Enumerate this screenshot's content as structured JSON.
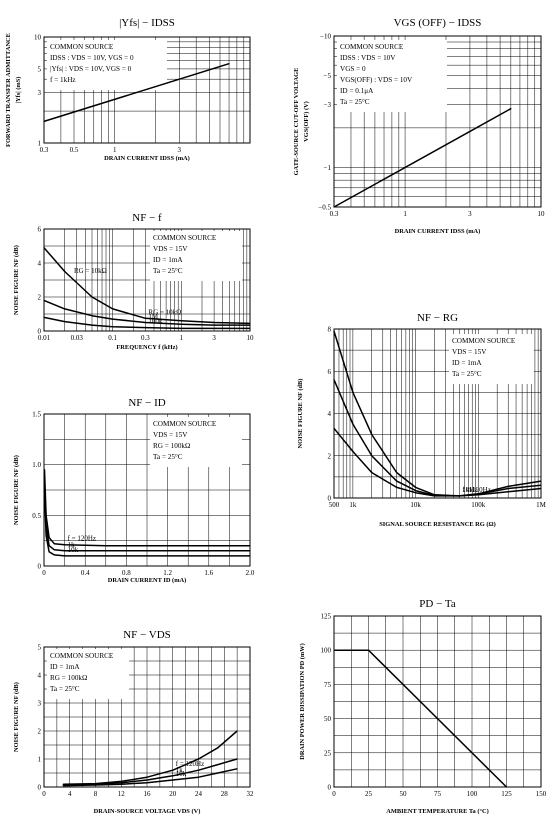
{
  "chart_data": [
    {
      "id": "yfs",
      "type": "line",
      "title": "|Yfs| − IDSS",
      "xscale": "log",
      "yscale": "log",
      "xlim": [
        0.3,
        10
      ],
      "ylim": [
        1,
        10
      ],
      "xticks": [
        0.3,
        0.5,
        1,
        3,
        5,
        10
      ],
      "xticklabels": [
        "0.3",
        "0.5",
        "1",
        "3",
        "",
        ""
      ],
      "yticks": [
        1,
        3,
        5,
        10
      ],
      "yticklabels": [
        "1",
        "3",
        "5",
        "10"
      ],
      "xlabel": "DRAIN CURRENT  IDSS  (mA)",
      "ylabel": [
        "FORWARD TRANSFER ADMITTANCE",
        "|Yfs|  (mS)"
      ],
      "conditions": [
        "COMMON SOURCE",
        "IDSS : VDS = 10V, VGS = 0",
        "|Yfs| : VDS = 10V, VGS = 0",
        "f = 1kHz"
      ],
      "series": [
        {
          "x": [
            0.3,
            7
          ],
          "y": [
            1.6,
            5.6
          ]
        }
      ]
    },
    {
      "id": "vgsoff",
      "type": "line",
      "title": "VGS (OFF) − IDSS",
      "xscale": "log",
      "yscale": "log",
      "xlim": [
        0.3,
        10
      ],
      "ylim": [
        -0.5,
        -10
      ],
      "xticks": [
        0.3,
        1,
        3,
        10
      ],
      "xticklabels": [
        "0.3",
        "1",
        "3",
        "10"
      ],
      "yticks": [
        -0.5,
        -1,
        -3,
        -5,
        -10
      ],
      "yticklabels": [
        "−0.5",
        "−1",
        "−3",
        "−5",
        "−10"
      ],
      "xlabel": "DRAIN CURRENT  IDSS  (mA)",
      "ylabel": [
        "GATE-SOURCE CUT-OFF VOLTAGE",
        "VGS(OFF)  (V)"
      ],
      "conditions": [
        "COMMON SOURCE",
        "IDSS : VDS = 10V",
        "VGS = 0",
        "VGS(OFF) : VDS = 10V",
        "ID = 0.1μA",
        "Ta = 25°C"
      ],
      "series": [
        {
          "x": [
            0.3,
            6
          ],
          "y": [
            -0.5,
            -2.8
          ]
        }
      ]
    },
    {
      "id": "nff",
      "type": "line",
      "title": "NF − f",
      "xscale": "log",
      "xlim": [
        0.01,
        10
      ],
      "ylim": [
        0,
        6
      ],
      "xticks": [
        0.01,
        0.03,
        0.1,
        0.3,
        1,
        3,
        10
      ],
      "xticklabels": [
        "0.01",
        "0.03",
        "0.1",
        "0.3",
        "1",
        "3",
        "10"
      ],
      "yticks": [
        0,
        2,
        4,
        6
      ],
      "yticklabels": [
        "0",
        "2",
        "4",
        "6"
      ],
      "xlabel": "FREQUENCY  f  (kHz)",
      "ylabel": [
        "NOISE FIGURE  NF  (dB)"
      ],
      "conditions": [
        "COMMON SOURCE",
        "VDS = 15V",
        "ID = 1mA",
        "Ta = 25°C"
      ],
      "annotation": "RG = 10kΩ",
      "series": [
        {
          "name": "RG = 10kΩ",
          "x": [
            0.01,
            0.02,
            0.05,
            0.1,
            0.3,
            1,
            3,
            10
          ],
          "y": [
            4.9,
            3.5,
            2.0,
            1.3,
            0.75,
            0.6,
            0.5,
            0.45
          ]
        },
        {
          "name": "1M",
          "x": [
            0.01,
            0.02,
            0.05,
            0.1,
            0.3,
            1,
            3,
            10
          ],
          "y": [
            1.8,
            1.3,
            0.9,
            0.7,
            0.5,
            0.4,
            0.35,
            0.35
          ]
        },
        {
          "name": "100k",
          "x": [
            0.01,
            0.02,
            0.05,
            0.1,
            0.3,
            1,
            3,
            10
          ],
          "y": [
            0.8,
            0.55,
            0.35,
            0.25,
            0.2,
            0.15,
            0.15,
            0.15
          ]
        }
      ]
    },
    {
      "id": "nfrg",
      "type": "line",
      "title": "NF − RG",
      "xscale": "log",
      "xlim": [
        500,
        1000000
      ],
      "ylim": [
        0,
        8
      ],
      "xticks": [
        500,
        1000,
        10000,
        100000,
        1000000
      ],
      "xticklabels": [
        "500",
        "1k",
        "10k",
        "100k",
        "1M"
      ],
      "yticks": [
        0,
        2,
        4,
        6,
        8
      ],
      "yticklabels": [
        "0",
        "2",
        "4",
        "6",
        "8"
      ],
      "xlabel": "SIGNAL SOURCE RESISTANCE  RG  (Ω)",
      "ylabel": [
        "NOISE FIGURE  NF  (dB)"
      ],
      "conditions": [
        "COMMON SOURCE",
        "VDS = 15V",
        "ID = 1mA",
        "Ta = 25°C"
      ],
      "series": [
        {
          "name": "f = 120Hz",
          "x": [
            500,
            1000,
            2000,
            5000,
            10000,
            20000,
            50000,
            100000,
            300000,
            1000000
          ],
          "y": [
            7.9,
            5.0,
            3.0,
            1.2,
            0.5,
            0.15,
            0.1,
            0.2,
            0.55,
            0.8
          ]
        },
        {
          "name": "1kHz",
          "x": [
            500,
            1000,
            2000,
            5000,
            10000,
            20000,
            50000,
            100000,
            300000,
            1000000
          ],
          "y": [
            5.6,
            3.5,
            2.0,
            0.8,
            0.35,
            0.12,
            0.1,
            0.18,
            0.45,
            0.6
          ]
        },
        {
          "name": "10k",
          "x": [
            500,
            1000,
            2000,
            5000,
            10000,
            20000,
            50000,
            100000,
            300000,
            1000000
          ],
          "y": [
            3.3,
            2.2,
            1.2,
            0.5,
            0.25,
            0.1,
            0.1,
            0.15,
            0.3,
            0.45
          ]
        }
      ]
    },
    {
      "id": "nfid",
      "type": "line",
      "title": "NF − ID",
      "xlim": [
        0,
        2.0
      ],
      "ylim": [
        0,
        1.5
      ],
      "xticks": [
        0,
        0.4,
        0.8,
        1.2,
        1.6,
        2.0
      ],
      "xticklabels": [
        "0",
        "0.4",
        "0.8",
        "1.2",
        "1.6",
        "2.0"
      ],
      "yticks": [
        0,
        0.5,
        1.0,
        1.5
      ],
      "yticklabels": [
        "0",
        "0.5",
        "1.0",
        "1.5"
      ],
      "xlabel": "DRAIN CURRENT  ID  (mA)",
      "ylabel": [
        "NOISE FIGURE  NF  (dB)"
      ],
      "conditions": [
        "COMMON SOURCE",
        "VDS = 15V",
        "RG = 100kΩ",
        "Ta = 25°C"
      ],
      "series": [
        {
          "name": "f = 120Hz",
          "x": [
            0.005,
            0.02,
            0.05,
            0.1,
            0.2,
            0.6,
            1.2,
            2.0
          ],
          "y": [
            0.95,
            0.5,
            0.28,
            0.22,
            0.21,
            0.2,
            0.2,
            0.2
          ]
        },
        {
          "name": "1k",
          "x": [
            0.005,
            0.02,
            0.05,
            0.1,
            0.2,
            0.6,
            1.2,
            2.0
          ],
          "y": [
            0.85,
            0.4,
            0.2,
            0.16,
            0.15,
            0.15,
            0.15,
            0.15
          ]
        },
        {
          "name": "10k",
          "x": [
            0.005,
            0.02,
            0.05,
            0.1,
            0.2,
            0.6,
            1.2,
            2.0
          ],
          "y": [
            0.75,
            0.3,
            0.14,
            0.11,
            0.1,
            0.1,
            0.1,
            0.1
          ]
        }
      ]
    },
    {
      "id": "nfvds",
      "type": "line",
      "title": "NF − VDS",
      "xlim": [
        0,
        32
      ],
      "ylim": [
        0,
        5
      ],
      "xticks": [
        0,
        4,
        8,
        12,
        16,
        20,
        24,
        28,
        32
      ],
      "xticklabels": [
        "0",
        "4",
        "8",
        "12",
        "16",
        "20",
        "24",
        "28",
        "32"
      ],
      "yticks": [
        0,
        1,
        2,
        3,
        4,
        5
      ],
      "yticklabels": [
        "0",
        "1",
        "2",
        "3",
        "4",
        "5"
      ],
      "xlabel": "DRAIN-SOURCE VOLTAGE  VDS  (V)",
      "ylabel": [
        "NOISE FIGURE  NF  (dB)"
      ],
      "conditions": [
        "COMMON SOURCE",
        "ID = 1mA",
        "RG = 100kΩ",
        "Ta = 25°C"
      ],
      "series": [
        {
          "name": "f = 120Hz",
          "x": [
            3,
            8,
            12,
            16,
            20,
            24,
            27,
            30
          ],
          "y": [
            0.1,
            0.12,
            0.2,
            0.35,
            0.6,
            1.0,
            1.4,
            2.0
          ]
        },
        {
          "name": "1k",
          "x": [
            3,
            8,
            12,
            16,
            20,
            24,
            27,
            30
          ],
          "y": [
            0.08,
            0.1,
            0.15,
            0.25,
            0.4,
            0.6,
            0.8,
            1.0
          ]
        },
        {
          "name": "10k",
          "x": [
            3,
            8,
            12,
            16,
            20,
            24,
            27,
            30
          ],
          "y": [
            0.05,
            0.07,
            0.1,
            0.15,
            0.25,
            0.35,
            0.5,
            0.65
          ]
        }
      ]
    },
    {
      "id": "pdta",
      "type": "line",
      "title": "PD − Ta",
      "xlim": [
        0,
        150
      ],
      "ylim": [
        0,
        125
      ],
      "xticks": [
        0,
        25,
        50,
        75,
        100,
        125,
        150
      ],
      "xticklabels": [
        "0",
        "25",
        "50",
        "75",
        "100",
        "125",
        "150"
      ],
      "yticks": [
        0,
        25,
        50,
        75,
        100,
        125
      ],
      "yticklabels": [
        "0",
        "25",
        "50",
        "75",
        "100",
        "125"
      ],
      "xlabel": "AMBIENT TEMPERATURE  Ta  (°C)",
      "ylabel": [
        "DRAIN POWER DISSIPATION  PD  (mW)"
      ],
      "conditions": [],
      "series": [
        {
          "x": [
            0,
            25,
            125
          ],
          "y": [
            100,
            100,
            0
          ]
        }
      ]
    }
  ]
}
